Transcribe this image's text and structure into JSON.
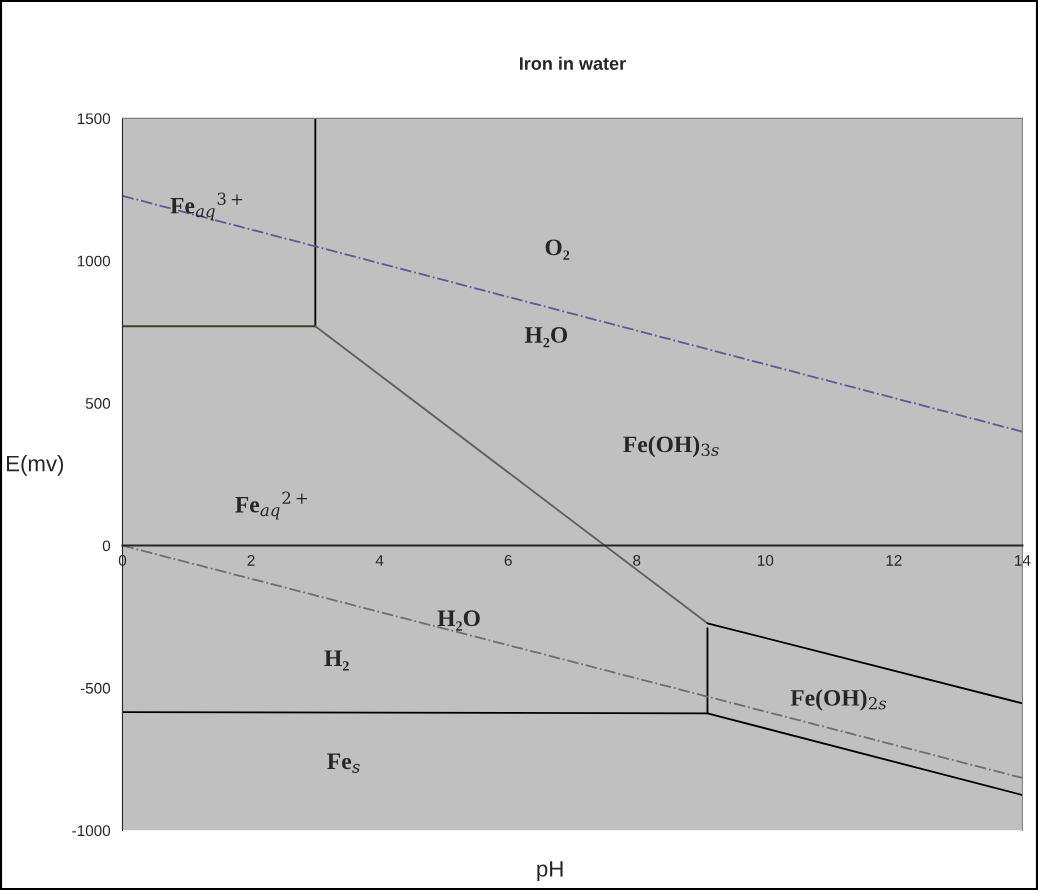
{
  "chart_data": {
    "type": "line",
    "title": "Iron in water",
    "xlabel": "pH",
    "ylabel": "E(mv)",
    "xlim": [
      0,
      14
    ],
    "xticks": [
      0,
      2,
      4,
      6,
      8,
      10,
      12,
      14
    ],
    "ylim": [
      -1000,
      1500
    ],
    "yticks": [
      -1000,
      -500,
      0,
      500,
      1000,
      1500
    ],
    "marker": "none",
    "grid": false,
    "series": [
      {
        "color": "#404020",
        "line_style": "solid",
        "x": [
          0,
          3.0
        ],
        "values": [
          770,
          770
        ]
      },
      {
        "color": "#000000",
        "line_style": "solid",
        "x": [
          3.0,
          3.0
        ],
        "values": [
          770,
          1500
        ]
      },
      {
        "color": "#606060",
        "line_style": "solid",
        "x": [
          3.0,
          9.1
        ],
        "values": [
          770,
          -273
        ]
      },
      {
        "color": "#000000",
        "line_style": "solid",
        "x": [
          9.1,
          14
        ],
        "values": [
          -273,
          -554
        ]
      },
      {
        "color": "#000000",
        "line_style": "solid",
        "x": [
          9.1,
          9.1
        ],
        "values": [
          -290,
          -589
        ]
      },
      {
        "color": "#000000",
        "line_style": "solid",
        "x": [
          0,
          9.1,
          14
        ],
        "values": [
          -585,
          -589,
          -876
        ]
      },
      {
        "color": "#5a5a9a",
        "line_style": "dashdot",
        "x": [
          0,
          14
        ],
        "values": [
          1228,
          400
        ]
      },
      {
        "color": "#707060",
        "line_style": "dashdot",
        "x": [
          0,
          14
        ],
        "values": [
          0,
          -816
        ]
      }
    ],
    "annotations": [
      "Fe$_{aq}$$^{3+}$",
      "Fe$_{aq}$$^{2+}$",
      "O₂",
      "H₂O",
      "Fe(OH)$_{3s}$",
      "H₂O",
      "H₂",
      "Fe$_{s}$",
      "Fe(OH)$_{2s}$"
    ]
  }
}
